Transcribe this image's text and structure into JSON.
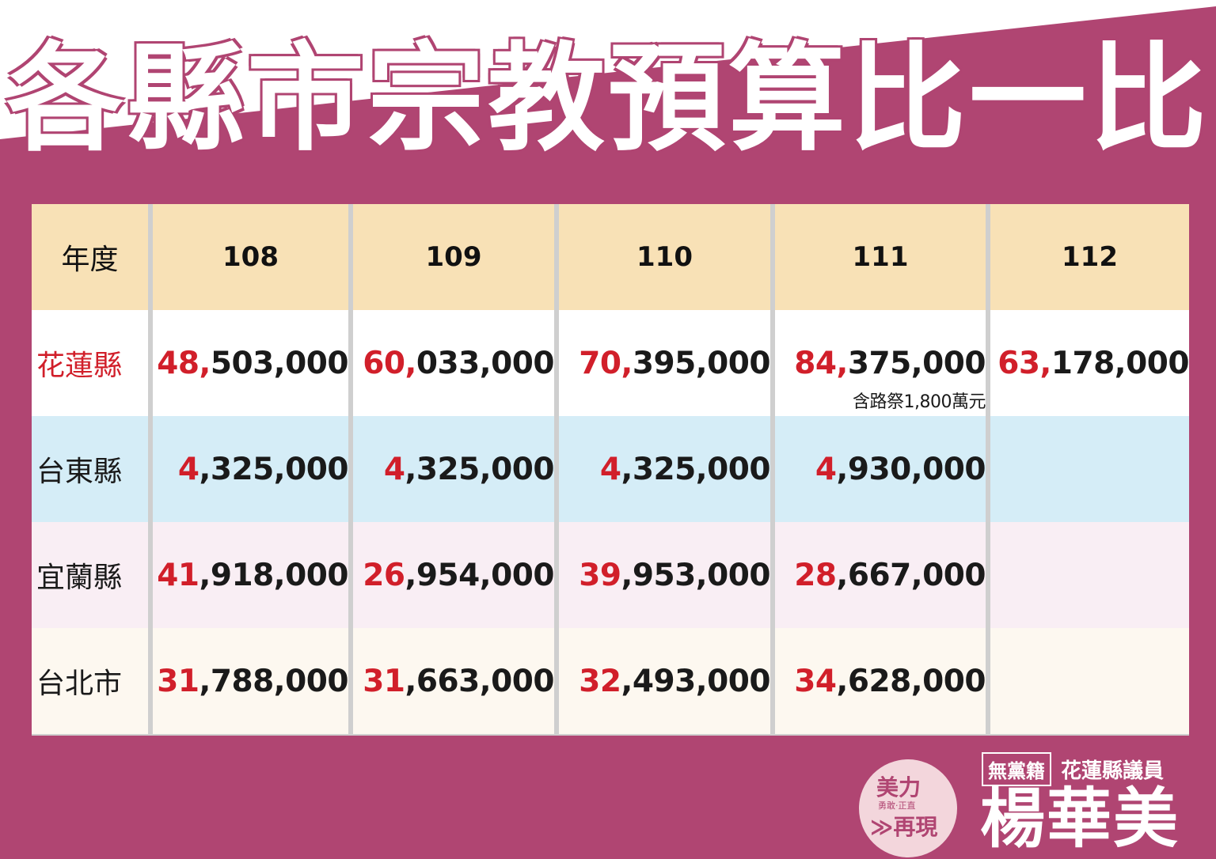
{
  "title": "各縣市宗教預算比一比",
  "table": {
    "header": {
      "label": "年度",
      "years": [
        "108",
        "109",
        "110",
        "111",
        "112"
      ]
    },
    "rows": [
      {
        "county": "花蓮縣",
        "county_color": "#d11f2a",
        "values": [
          {
            "hi": "48,",
            "rest": "503,000"
          },
          {
            "hi": "60,",
            "rest": "033,000"
          },
          {
            "hi": "70,",
            "rest": "395,000"
          },
          {
            "hi": "84,",
            "rest": "375,000"
          },
          {
            "hi": "63,",
            "rest": "178,000"
          }
        ],
        "note": "含路祭1,800萬元"
      },
      {
        "county": "台東縣",
        "values": [
          {
            "hi": "4",
            "rest": ",325,000"
          },
          {
            "hi": "4",
            "rest": ",325,000"
          },
          {
            "hi": "4",
            "rest": ",325,000"
          },
          {
            "hi": "4",
            "rest": ",930,000"
          },
          {
            "hi": "",
            "rest": ""
          }
        ]
      },
      {
        "county": "宜蘭縣",
        "values": [
          {
            "hi": "41",
            "rest": ",918,000"
          },
          {
            "hi": "26",
            "rest": ",954,000"
          },
          {
            "hi": "39",
            "rest": ",953,000"
          },
          {
            "hi": "28",
            "rest": ",667,000"
          },
          {
            "hi": "",
            "rest": ""
          }
        ]
      },
      {
        "county": "台北市",
        "values": [
          {
            "hi": "31",
            "rest": ",788,000"
          },
          {
            "hi": "31",
            "rest": ",663,000"
          },
          {
            "hi": "32",
            "rest": ",493,000"
          },
          {
            "hi": "34",
            "rest": ",628,000"
          },
          {
            "hi": "",
            "rest": ""
          }
        ]
      }
    ]
  },
  "footer": {
    "badge_line1": "美力",
    "badge_line2": "勇敢‧正直",
    "badge_line3": "≫再現",
    "party": "無黨籍",
    "position": "花蓮縣議員",
    "name": "楊華美"
  },
  "colors": {
    "background": "#b04572",
    "header_row": "#f8e1b6",
    "highlight": "#d11f2a"
  }
}
